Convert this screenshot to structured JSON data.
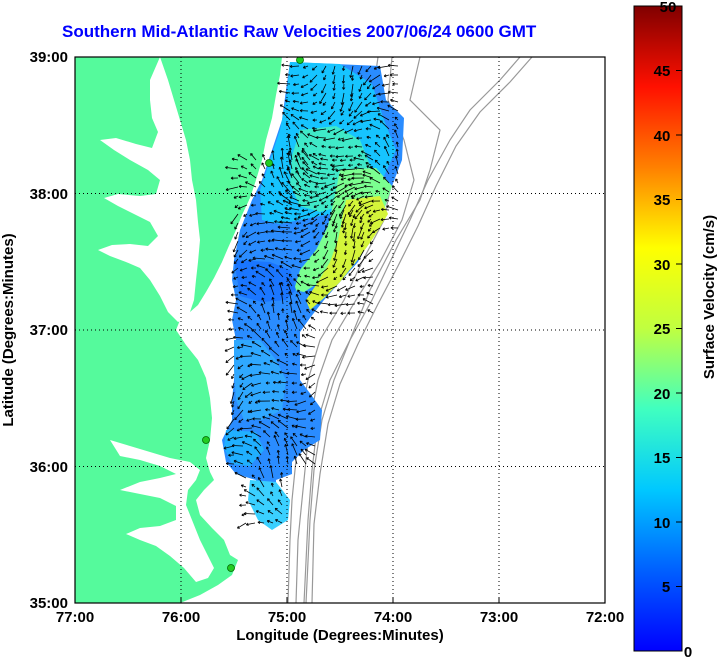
{
  "title": "Southern Mid-Atlantic Raw Velocities 2007/06/24 0600 GMT",
  "axes": {
    "xlabel": "Longitude (Degrees:Minutes)",
    "ylabel": "Latitude (Degrees:Minutes)",
    "x_ticks": [
      "77:00",
      "76:00",
      "75:00",
      "74:00",
      "73:00",
      "72:00"
    ],
    "y_ticks": [
      "39:00",
      "38:00",
      "37:00",
      "36:00",
      "35:00"
    ],
    "x_range": [
      -77,
      -72
    ],
    "y_range": [
      35,
      39
    ],
    "grid": "dotted"
  },
  "colorbar": {
    "label": "Surface Velocity (cm/s)",
    "ticks": [
      "50",
      "45",
      "40",
      "35",
      "30",
      "25",
      "20",
      "15",
      "10",
      "5",
      "0"
    ],
    "range": [
      0,
      50
    ],
    "colormap": "jet"
  },
  "colors": {
    "land": "#55fa9c",
    "title": "#0000ff",
    "bathymetry": "#999999",
    "site_marker": "#22cc22"
  }
}
